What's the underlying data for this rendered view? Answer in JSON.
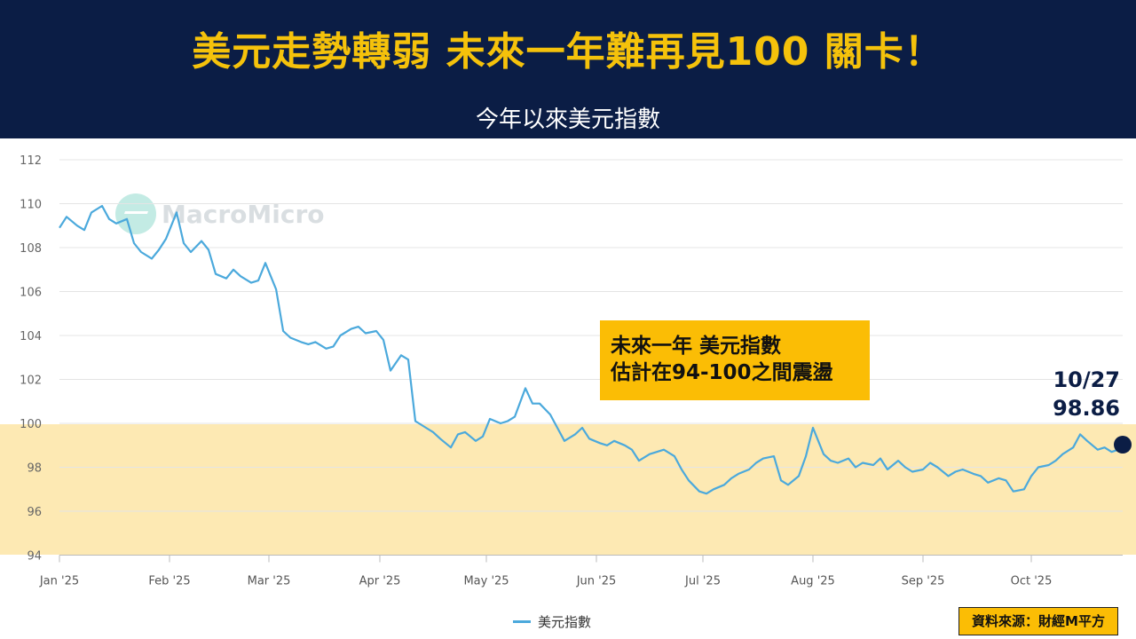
{
  "header": {
    "title": "美元走勢轉弱 未來一年難再見100 關卡！",
    "subtitle": "今年以來美元指數"
  },
  "callout": {
    "line1": "未來一年 美元指數",
    "line2": "估計在94-100之間震盪"
  },
  "end_label": {
    "date": "10/27",
    "value": "98.86"
  },
  "watermark": {
    "text": "MacroMicro"
  },
  "source": "資料來源：財經M平方",
  "colors": {
    "header_bg": "#0b1d45",
    "title": "#f5c20b",
    "line": "#4ba9dc",
    "band": "#fde9b3",
    "callout_bg": "#fbbd05"
  },
  "chart_data": {
    "type": "line",
    "ylim": [
      94,
      112
    ],
    "yticks": [
      94,
      96,
      98,
      100,
      102,
      104,
      106,
      108,
      110,
      112
    ],
    "xlabels": [
      "Jan '25",
      "Feb '25",
      "Mar '25",
      "Apr '25",
      "May '25",
      "Jun '25",
      "Jul '25",
      "Aug '25",
      "Sep '25",
      "Oct '25"
    ],
    "highlight_band": [
      94,
      100
    ],
    "series": [
      {
        "name": "美元指數",
        "x": [
          "2025-01-01",
          "2025-01-03",
          "2025-01-06",
          "2025-01-08",
          "2025-01-10",
          "2025-01-13",
          "2025-01-15",
          "2025-01-17",
          "2025-01-20",
          "2025-01-22",
          "2025-01-24",
          "2025-01-27",
          "2025-01-29",
          "2025-01-31",
          "2025-02-03",
          "2025-02-05",
          "2025-02-07",
          "2025-02-10",
          "2025-02-12",
          "2025-02-14",
          "2025-02-17",
          "2025-02-19",
          "2025-02-21",
          "2025-02-24",
          "2025-02-26",
          "2025-02-28",
          "2025-03-03",
          "2025-03-05",
          "2025-03-07",
          "2025-03-10",
          "2025-03-12",
          "2025-03-14",
          "2025-03-17",
          "2025-03-19",
          "2025-03-21",
          "2025-03-24",
          "2025-03-26",
          "2025-03-28",
          "2025-03-31",
          "2025-04-02",
          "2025-04-04",
          "2025-04-07",
          "2025-04-09",
          "2025-04-11",
          "2025-04-14",
          "2025-04-16",
          "2025-04-18",
          "2025-04-21",
          "2025-04-23",
          "2025-04-25",
          "2025-04-28",
          "2025-04-30",
          "2025-05-02",
          "2025-05-05",
          "2025-05-07",
          "2025-05-09",
          "2025-05-12",
          "2025-05-14",
          "2025-05-16",
          "2025-05-19",
          "2025-05-21",
          "2025-05-23",
          "2025-05-26",
          "2025-05-28",
          "2025-05-30",
          "2025-06-02",
          "2025-06-04",
          "2025-06-06",
          "2025-06-09",
          "2025-06-11",
          "2025-06-13",
          "2025-06-16",
          "2025-06-18",
          "2025-06-20",
          "2025-06-23",
          "2025-06-25",
          "2025-06-27",
          "2025-06-30",
          "2025-07-02",
          "2025-07-04",
          "2025-07-07",
          "2025-07-09",
          "2025-07-11",
          "2025-07-14",
          "2025-07-16",
          "2025-07-18",
          "2025-07-21",
          "2025-07-23",
          "2025-07-25",
          "2025-07-28",
          "2025-07-30",
          "2025-08-01",
          "2025-08-04",
          "2025-08-06",
          "2025-08-08",
          "2025-08-11",
          "2025-08-13",
          "2025-08-15",
          "2025-08-18",
          "2025-08-20",
          "2025-08-22",
          "2025-08-25",
          "2025-08-27",
          "2025-08-29",
          "2025-09-01",
          "2025-09-03",
          "2025-09-05",
          "2025-09-08",
          "2025-09-10",
          "2025-09-12",
          "2025-09-15",
          "2025-09-17",
          "2025-09-19",
          "2025-09-22",
          "2025-09-24",
          "2025-09-26",
          "2025-09-29",
          "2025-10-01",
          "2025-10-03",
          "2025-10-06",
          "2025-10-08",
          "2025-10-10",
          "2025-10-13",
          "2025-10-15",
          "2025-10-17",
          "2025-10-20",
          "2025-10-22",
          "2025-10-24",
          "2025-10-27"
        ],
        "values": [
          108.9,
          109.4,
          109.0,
          108.8,
          109.6,
          109.9,
          109.3,
          109.1,
          109.3,
          108.2,
          107.8,
          107.5,
          107.9,
          108.4,
          109.6,
          108.2,
          107.8,
          108.3,
          107.9,
          106.8,
          106.6,
          107.0,
          106.7,
          106.4,
          106.5,
          107.3,
          106.1,
          104.2,
          103.9,
          103.7,
          103.6,
          103.7,
          103.4,
          103.5,
          104.0,
          104.3,
          104.4,
          104.1,
          104.2,
          103.8,
          102.4,
          103.1,
          102.9,
          100.1,
          99.8,
          99.6,
          99.3,
          98.9,
          99.5,
          99.6,
          99.2,
          99.4,
          100.2,
          100.0,
          100.1,
          100.3,
          101.6,
          100.9,
          100.9,
          100.4,
          99.8,
          99.2,
          99.5,
          99.8,
          99.3,
          99.1,
          99.0,
          99.2,
          99.0,
          98.8,
          98.3,
          98.6,
          98.7,
          98.8,
          98.5,
          97.9,
          97.4,
          96.9,
          96.8,
          97.0,
          97.2,
          97.5,
          97.7,
          97.9,
          98.2,
          98.4,
          98.5,
          97.4,
          97.2,
          97.6,
          98.5,
          99.8,
          98.6,
          98.3,
          98.2,
          98.4,
          98.0,
          98.2,
          98.1,
          98.4,
          97.9,
          98.3,
          98.0,
          97.8,
          97.9,
          98.2,
          98.0,
          97.6,
          97.8,
          97.9,
          97.7,
          97.6,
          97.3,
          97.5,
          97.4,
          96.9,
          97.0,
          97.6,
          98.0,
          98.1,
          98.3,
          98.6,
          98.9,
          99.5,
          99.2,
          98.8,
          98.9,
          98.7,
          98.86
        ]
      }
    ]
  }
}
